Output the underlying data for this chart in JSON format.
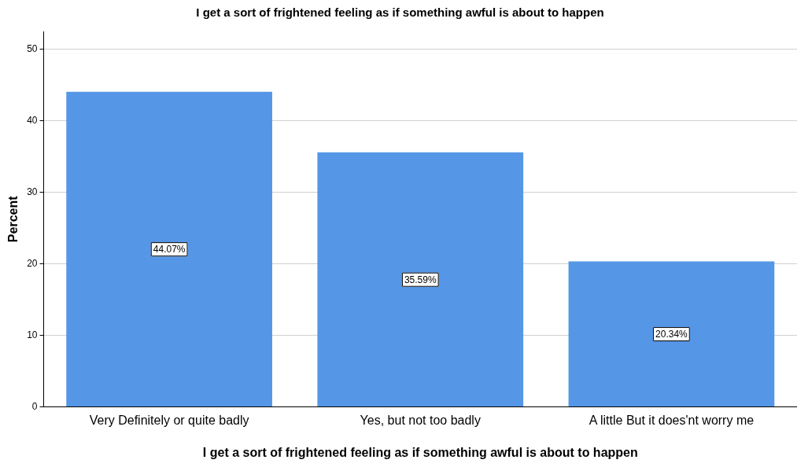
{
  "chart_data": {
    "type": "bar",
    "title": "I get a sort of frightened feeling as if something awful is about to happen",
    "xlabel": "I get a sort of frightened feeling as if something awful is about to happen",
    "ylabel": "Percent",
    "categories": [
      "Very Definitely or quite badly",
      "Yes, but not too badly",
      "A little But it does'nt worry me"
    ],
    "values": [
      44.07,
      35.59,
      20.34
    ],
    "value_labels": [
      "44.07%",
      "35.59%",
      "20.34%"
    ],
    "color": "#5596e6",
    "ylim": [
      0,
      52.5
    ],
    "yticks": [
      0,
      10,
      20,
      30,
      40,
      50
    ],
    "grid": "y"
  }
}
